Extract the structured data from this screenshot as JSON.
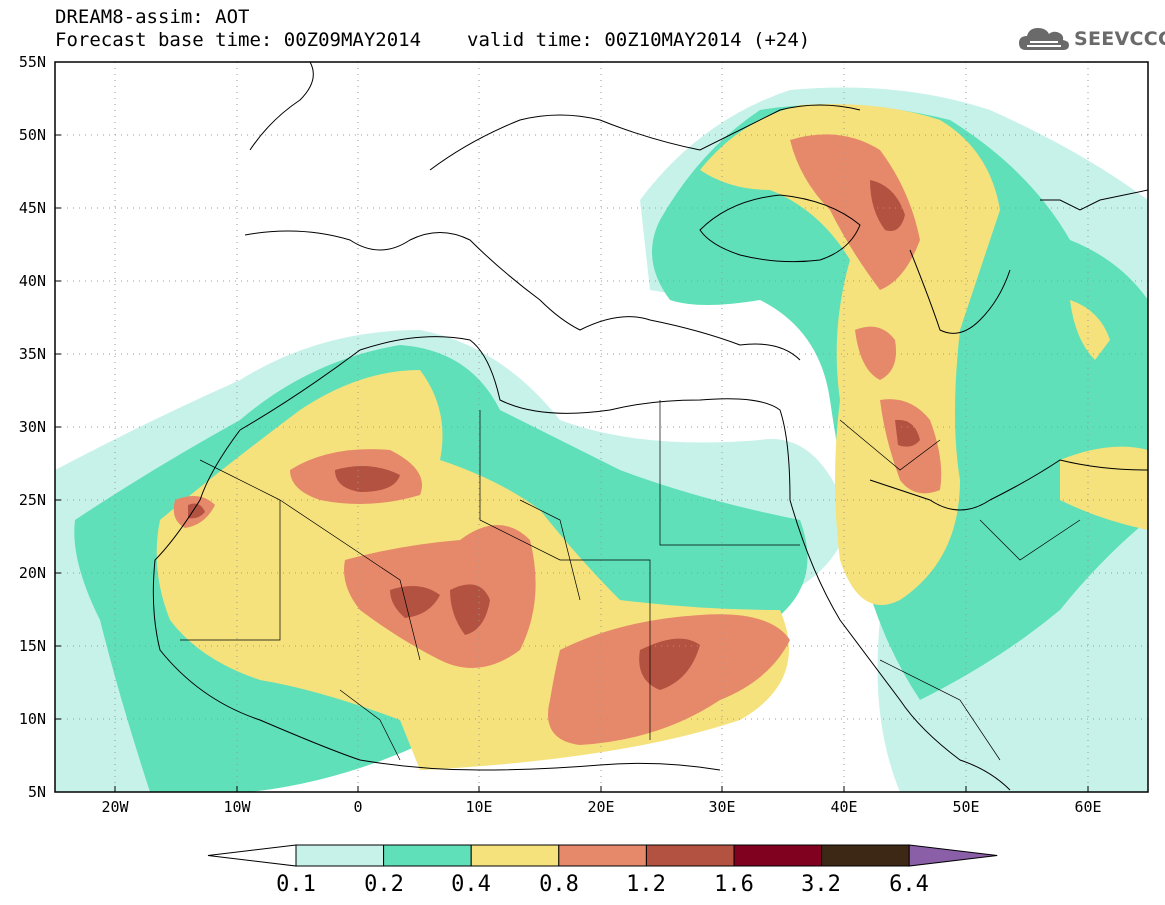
{
  "title_line1": "DREAM8-assim: AOT",
  "base_time": "Forecast base time: 00Z09MAY2014",
  "valid_time": "valid time: 00Z10MAY2014 (+24)",
  "logo_text": "SEEVCCC",
  "x_ticks": [
    "20W",
    "10W",
    "0",
    "10E",
    "20E",
    "30E",
    "40E",
    "50E",
    "60E"
  ],
  "y_ticks": [
    "55N",
    "50N",
    "45N",
    "40N",
    "35N",
    "30N",
    "25N",
    "20N",
    "15N",
    "10N",
    "5N"
  ],
  "colorbar": {
    "labels": [
      "0.1",
      "0.2",
      "0.4",
      "0.8",
      "1.2",
      "1.6",
      "3.2",
      "6.4"
    ],
    "colors": [
      "#ffffff",
      "#c7f2ea",
      "#5fe0b9",
      "#f5e27c",
      "#e6896a",
      "#b35240",
      "#800020",
      "#3d2816",
      "#8b5fa8"
    ]
  },
  "colors": {
    "coast": "#000000",
    "grid": "#9a9a9a"
  }
}
